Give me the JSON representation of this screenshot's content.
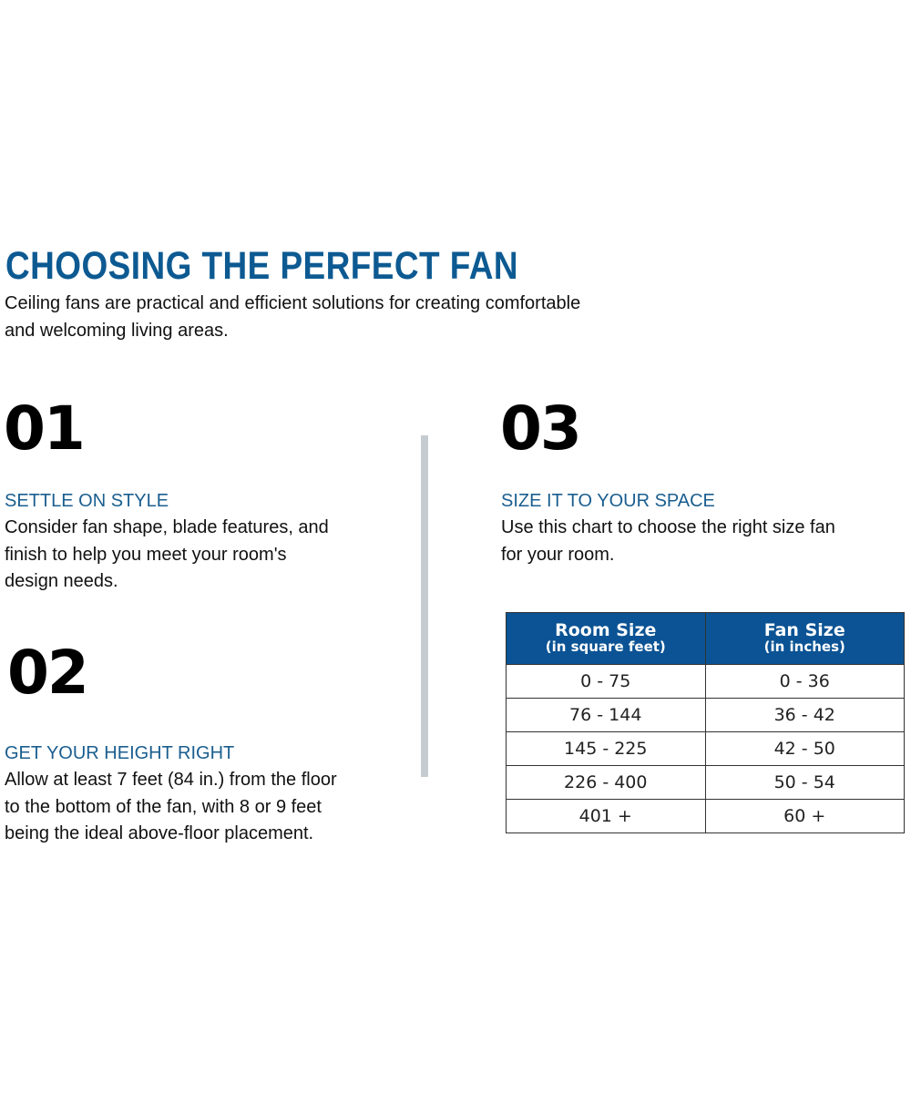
{
  "title": "CHOOSING THE PERFECT FAN",
  "intro_lines": [
    "Ceiling fans are practical and efficient solutions for creating comfortable",
    "and welcoming living areas."
  ],
  "colors": {
    "accent": "#0d5a92",
    "table_header": "#0b5394",
    "divider": "#c5ccd1"
  },
  "steps": [
    {
      "number": "01",
      "heading": "SETTLE ON STYLE",
      "lines": [
        "Consider fan shape, blade features, and",
        "finish to help you meet your room's",
        "design needs."
      ]
    },
    {
      "number": "02",
      "heading": "GET YOUR HEIGHT RIGHT",
      "lines": [
        "Allow at least 7 feet (84 in.) from the floor",
        "to the bottom of the fan, with 8 or 9 feet",
        "being the ideal above-floor placement."
      ]
    },
    {
      "number": "03",
      "heading": "SIZE IT TO YOUR SPACE",
      "lines": [
        "Use this chart to choose the right size fan",
        "for your room."
      ]
    }
  ],
  "table": {
    "headers": [
      {
        "title": "Room Size",
        "subtitle": "(in square feet)"
      },
      {
        "title": "Fan Size",
        "subtitle": "(in inches)"
      }
    ],
    "rows": [
      [
        "0 - 75",
        "0 - 36"
      ],
      [
        "76 - 144",
        "36 - 42"
      ],
      [
        "145 - 225",
        "42 - 50"
      ],
      [
        "226 - 400",
        "50 - 54"
      ],
      [
        "401 +",
        "60 +"
      ]
    ]
  }
}
